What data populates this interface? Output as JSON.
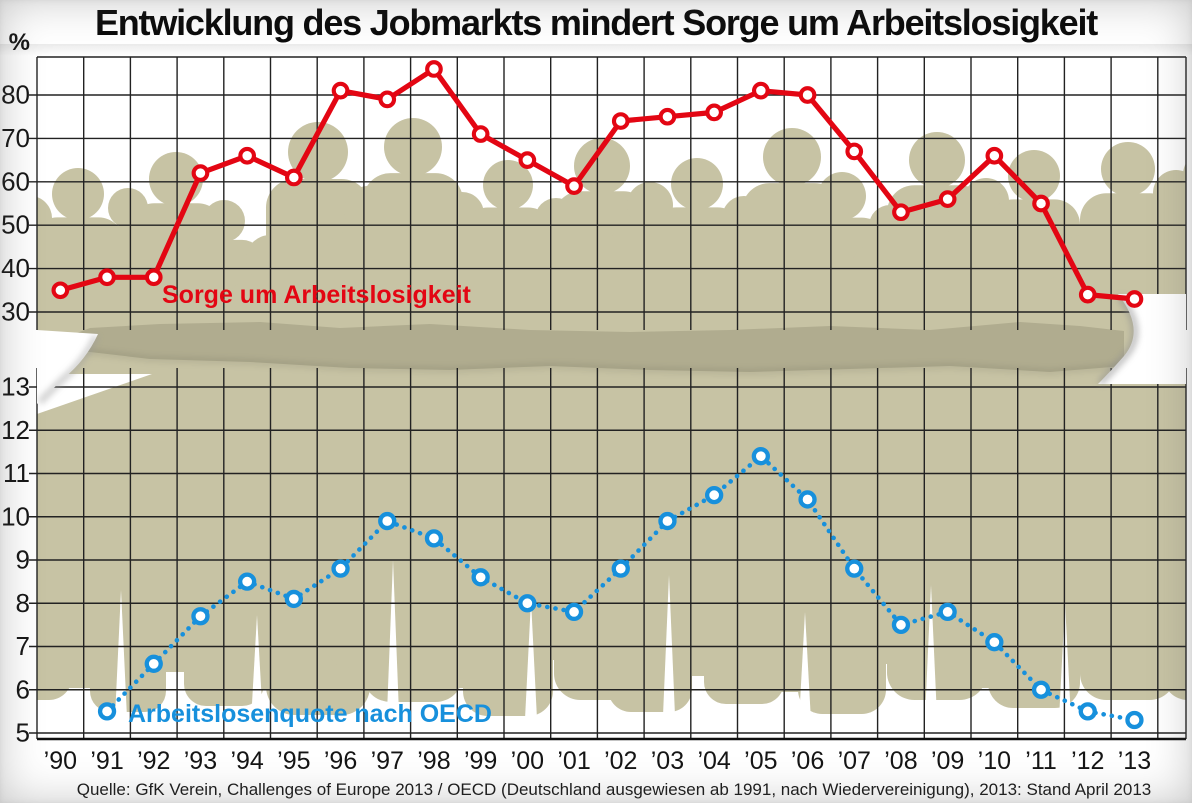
{
  "page": {
    "title": "Entwicklung des Jobmarkts mindert Sorge um Arbeitslosigkeit",
    "source_note": "Quelle: GfK Verein, Challenges of Europe 2013 / OECD (Deutschland ausgewiesen ab 1991, nach Wiedervereinigung), 2013: Stand April 2013"
  },
  "colors": {
    "worry_red": "#e30613",
    "oecd_blue": "#1790dc",
    "silhouette_khaki": "#c7c3a4",
    "divider_olive": "#b0ac8f",
    "grid_dark": "#222222",
    "text_dark": "#151515"
  },
  "chart_data": {
    "type": "line",
    "title": "Entwicklung des Jobmarkts mindert Sorge um Arbeitslosigkeit",
    "x": [
      1990,
      1991,
      1992,
      1993,
      1994,
      1995,
      1996,
      1997,
      1998,
      1999,
      2000,
      2001,
      2002,
      2003,
      2004,
      2005,
      2006,
      2007,
      2008,
      2009,
      2010,
      2011,
      2012,
      2013
    ],
    "x_tick_labels": [
      "’90",
      "’91",
      "’92",
      "’93",
      "’94",
      "’95",
      "’96",
      "’97",
      "’98",
      "’99",
      "’00",
      "’01",
      "’02",
      "’03",
      "’04",
      "’05",
      "’06",
      "’07",
      "’08",
      "’09",
      "’10",
      "’11",
      "’12",
      "’13"
    ],
    "grid": true,
    "legend_position": "inline-labels",
    "panels": [
      {
        "position": "top",
        "ylabel": "%",
        "ylim": [
          26,
          88.8
        ],
        "yticks": [
          30,
          40,
          50,
          60,
          70,
          80
        ],
        "series": [
          {
            "name": "Sorge um Arbeitslosigkeit",
            "style": "solid",
            "marker": "circle",
            "color": "#e30613",
            "unit": "%",
            "start_year": 1990,
            "values": [
              35,
              38,
              38,
              62,
              66,
              61,
              81,
              79,
              86,
              71,
              65,
              59,
              74,
              75,
              76,
              81,
              80,
              67,
              53,
              56,
              66,
              55,
              34,
              33
            ]
          }
        ]
      },
      {
        "position": "bottom",
        "ylabel": "",
        "ylim": [
          4.85,
          13.45
        ],
        "yticks": [
          5,
          6,
          7,
          8,
          9,
          10,
          11,
          12,
          13
        ],
        "series": [
          {
            "name": "Arbeitslosenquote nach OECD",
            "style": "dotted",
            "marker": "circle",
            "color": "#1790dc",
            "unit": "%",
            "start_year": 1991,
            "values": [
              5.5,
              6.6,
              7.7,
              8.5,
              8.1,
              8.8,
              9.9,
              9.5,
              8.6,
              8.0,
              7.8,
              8.8,
              9.9,
              10.5,
              11.4,
              10.4,
              8.8,
              7.5,
              7.8,
              7.1,
              6.0,
              5.5,
              5.3
            ]
          }
        ]
      }
    ]
  }
}
